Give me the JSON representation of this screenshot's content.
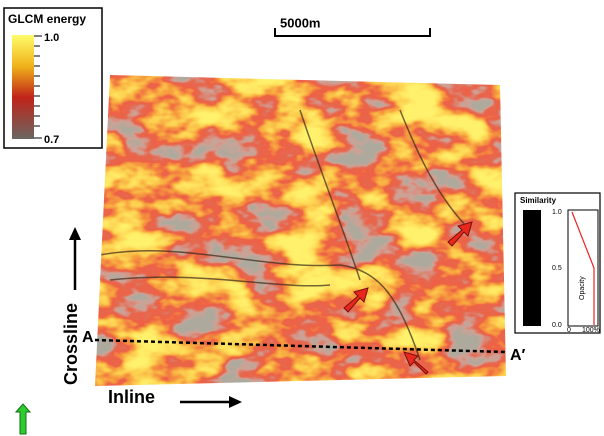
{
  "energy_legend": {
    "title": "GLCM energy",
    "max_label": "1.0",
    "min_label": "0.7"
  },
  "scale_bar": "5000m",
  "similarity_legend": {
    "title": "Similarity",
    "ticks": [
      "1.0",
      "0.5",
      "0.0"
    ],
    "opacity_label": "Opacity",
    "opacity_ticks": [
      "0",
      "100%"
    ]
  },
  "axes": {
    "crossline": "Crossline",
    "inline": "Inline"
  },
  "section": {
    "start": "A",
    "end": "A′"
  }
}
